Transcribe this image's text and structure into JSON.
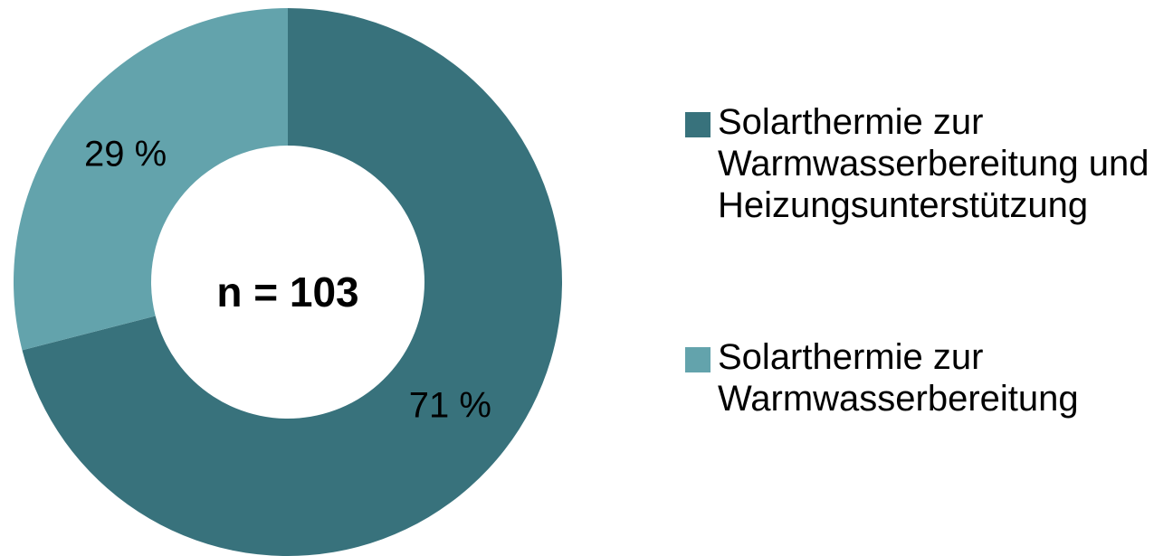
{
  "chart_data": {
    "type": "donut",
    "categories": [
      "Solarthermie zur Warmwasserbereitung und Heizungsunterstützung",
      "Solarthermie zur Warmwasserbereitung"
    ],
    "values": [
      71,
      29
    ],
    "value_labels": [
      "71 %",
      "29 %"
    ],
    "colors": [
      "#38727c",
      "#63a3ac"
    ],
    "annotation": "n = 103",
    "legend": "right"
  }
}
